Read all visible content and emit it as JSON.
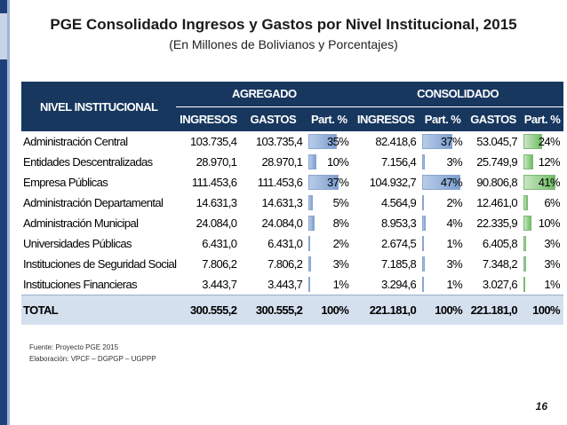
{
  "slide": {
    "title": "PGE Consolidado Ingresos y Gastos por Nivel Institucional, 2015",
    "subtitle": "(En Millones de Bolivianos y Porcentajes)",
    "page_number": "16"
  },
  "table": {
    "header": {
      "institution": "NIVEL INSTITUCIONAL",
      "group_agregado": "AGREGADO",
      "group_consolidado": "CONSOLIDADO",
      "col_ingresos_ag": "INGRESOS",
      "col_gastos_ag": "GASTOS",
      "col_part_ag": "Part. %",
      "col_ingresos_co": "INGRESOS",
      "col_part_ing_co": "Part. %",
      "col_gastos_co": "GASTOS",
      "col_part_gas_co": "Part. %"
    },
    "rows": [
      {
        "name": "Administración Central",
        "ing_ag": "103.735,4",
        "gas_ag": "103.735,4",
        "part_ag": "35%",
        "ing_co": "82.418,6",
        "part_ing_co": "37%",
        "gas_co": "53.045,7",
        "part_gas_co": "24%"
      },
      {
        "name": "Entidades Descentralizadas",
        "ing_ag": "28.970,1",
        "gas_ag": "28.970,1",
        "part_ag": "10%",
        "ing_co": "7.156,4",
        "part_ing_co": "3%",
        "gas_co": "25.749,9",
        "part_gas_co": "12%"
      },
      {
        "name": "Empresa Públicas",
        "ing_ag": "111.453,6",
        "gas_ag": "111.453,6",
        "part_ag": "37%",
        "ing_co": "104.932,7",
        "part_ing_co": "47%",
        "gas_co": "90.806,8",
        "part_gas_co": "41%"
      },
      {
        "name": "Administración Departamental",
        "ing_ag": "14.631,3",
        "gas_ag": "14.631,3",
        "part_ag": "5%",
        "ing_co": "4.564,9",
        "part_ing_co": "2%",
        "gas_co": "12.461,0",
        "part_gas_co": "6%"
      },
      {
        "name": "Administración Municipal",
        "ing_ag": "24.084,0",
        "gas_ag": "24.084,0",
        "part_ag": "8%",
        "ing_co": "8.953,3",
        "part_ing_co": "4%",
        "gas_co": "22.335,9",
        "part_gas_co": "10%"
      },
      {
        "name": "Universidades Públicas",
        "ing_ag": "6.431,0",
        "gas_ag": "6.431,0",
        "part_ag": "2%",
        "ing_co": "2.674,5",
        "part_ing_co": "1%",
        "gas_co": "6.405,8",
        "part_gas_co": "3%"
      },
      {
        "name": "Instituciones de Seguridad Social",
        "ing_ag": "7.806,2",
        "gas_ag": "7.806,2",
        "part_ag": "3%",
        "ing_co": "7.185,8",
        "part_ing_co": "3%",
        "gas_co": "7.348,2",
        "part_gas_co": "3%"
      },
      {
        "name": "Instituciones Financieras",
        "ing_ag": "3.443,7",
        "gas_ag": "3.443,7",
        "part_ag": "1%",
        "ing_co": "3.294,6",
        "part_ing_co": "1%",
        "gas_co": "3.027,6",
        "part_gas_co": "1%"
      }
    ],
    "total": {
      "name": "TOTAL",
      "ing_ag": "300.555,2",
      "gas_ag": "300.555,2",
      "part_ag": "100%",
      "ing_co": "221.181,0",
      "part_ing_co": "100%",
      "gas_co": "221.181,0",
      "part_gas_co": "100%"
    }
  },
  "footer": {
    "source": "Fuente: Proyecto PGE 2015",
    "elaboration": "Elaboración: VPCF – DGPGP – UGPPP"
  },
  "colors": {
    "header_bg": "#17375e",
    "total_bg": "#d5e0ef",
    "bar_blue": "#7d9fcf",
    "bar_green": "#6fbd64"
  }
}
